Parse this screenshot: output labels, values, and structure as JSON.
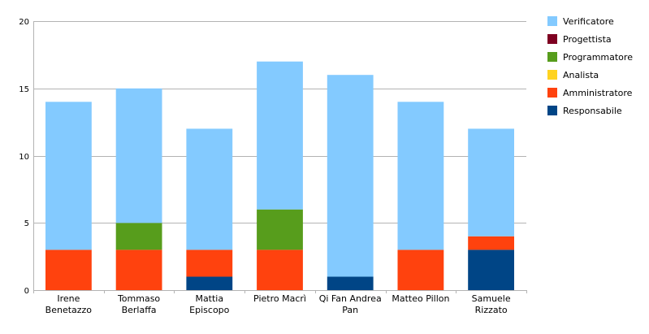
{
  "chart_data": {
    "type": "bar",
    "stacked": true,
    "categories": [
      [
        "Irene",
        "Benetazzo"
      ],
      [
        "Tommaso",
        "Berlaffa"
      ],
      [
        "Mattia",
        "Episcopo"
      ],
      [
        "Pietro Macrì"
      ],
      [
        "Qi Fan Andrea",
        "Pan"
      ],
      [
        "Matteo Pillon"
      ],
      [
        "Samuele",
        "Rizzato"
      ]
    ],
    "series": [
      {
        "name": "Responsabile",
        "color": "#004586",
        "values": [
          0,
          0,
          1,
          0,
          1,
          0,
          3
        ]
      },
      {
        "name": "Amministratore",
        "color": "#ff420e",
        "values": [
          3,
          3,
          2,
          3,
          0,
          3,
          1
        ]
      },
      {
        "name": "Analista",
        "color": "#ffd320",
        "values": [
          0,
          0,
          0,
          0,
          0,
          0,
          0
        ]
      },
      {
        "name": "Programmatore",
        "color": "#579d1c",
        "values": [
          0,
          2,
          0,
          3,
          0,
          0,
          0
        ]
      },
      {
        "name": "Progettista",
        "color": "#7e0021",
        "values": [
          0,
          0,
          0,
          0,
          0,
          0,
          0
        ]
      },
      {
        "name": "Verificatore",
        "color": "#83caff",
        "values": [
          11,
          10,
          9,
          11,
          15,
          11,
          8
        ]
      }
    ],
    "legend_order": [
      "Verificatore",
      "Progettista",
      "Programmatore",
      "Analista",
      "Amministratore",
      "Responsabile"
    ],
    "legend_position": "right",
    "ylim": [
      0,
      20
    ],
    "yticks": [
      0,
      5,
      10,
      15,
      20
    ],
    "grid": true
  }
}
